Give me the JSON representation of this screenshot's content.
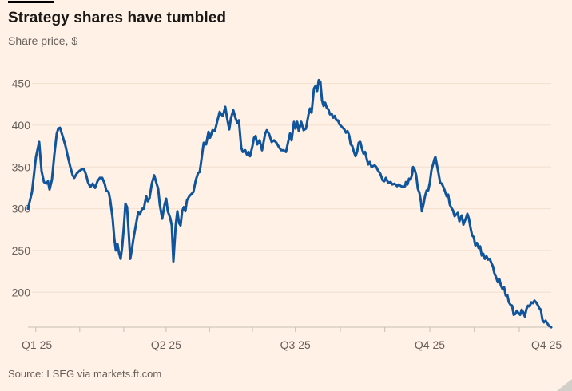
{
  "header": {
    "title": "Strategy shares have tumbled",
    "subtitle": "Share price, $"
  },
  "footer": {
    "source": "Source: LSEG via markets.ft.com"
  },
  "colors": {
    "background": "#FFF1E5",
    "line": "#10549C",
    "title_text": "#1A1817",
    "muted_text": "#66605C",
    "gridline": "#F2E0D0",
    "axis": "#C7BEB4",
    "accent_bar": "#000000",
    "resize_handle": "#D2CFCA"
  },
  "icons": {
    "resize_handle": "corner-triangle"
  },
  "chart_data": {
    "type": "line",
    "title": "Strategy shares have tumbled",
    "ylabel": "Share price, $",
    "source": "Source: LSEG via markets.ft.com",
    "grid": "horizontal",
    "legend": "none",
    "ylim": [
      157,
      469
    ],
    "y_ticks": [
      200,
      250,
      300,
      350,
      400,
      450
    ],
    "x_ticks": [
      {
        "label": "Q1 25",
        "pos": 0.017
      },
      {
        "label": "Q2 25",
        "pos": 0.264
      },
      {
        "label": "Q3 25",
        "pos": 0.511
      },
      {
        "label": "Q4 25",
        "pos": 0.768
      },
      {
        "label": "Q4 25",
        "pos": 0.991
      }
    ],
    "x_minor_tick_pos": [
      0.015,
      0.099,
      0.183,
      0.264,
      0.347,
      0.429,
      0.511,
      0.597,
      0.682,
      0.768,
      0.853,
      0.939
    ],
    "series": [
      {
        "name": "Strategy share price ($)",
        "points": [
          [
            0.0,
            300
          ],
          [
            0.0076,
            320
          ],
          [
            0.0153,
            362
          ],
          [
            0.0214,
            380
          ],
          [
            0.026,
            345
          ],
          [
            0.0305,
            332
          ],
          [
            0.0351,
            330
          ],
          [
            0.0382,
            333
          ],
          [
            0.0412,
            323
          ],
          [
            0.0458,
            335
          ],
          [
            0.0504,
            365
          ],
          [
            0.055,
            390
          ],
          [
            0.058,
            396
          ],
          [
            0.0611,
            397
          ],
          [
            0.0656,
            388
          ],
          [
            0.0718,
            375
          ],
          [
            0.0763,
            362
          ],
          [
            0.0809,
            350
          ],
          [
            0.0855,
            340
          ],
          [
            0.0885,
            337
          ],
          [
            0.0931,
            342
          ],
          [
            0.0977,
            345
          ],
          [
            0.1023,
            347
          ],
          [
            0.1069,
            348
          ],
          [
            0.1115,
            340
          ],
          [
            0.1145,
            332
          ],
          [
            0.1191,
            326
          ],
          [
            0.1237,
            330
          ],
          [
            0.1282,
            325
          ],
          [
            0.1328,
            333
          ],
          [
            0.1374,
            337
          ],
          [
            0.142,
            337
          ],
          [
            0.1466,
            330
          ],
          [
            0.1496,
            322
          ],
          [
            0.1542,
            320
          ],
          [
            0.1573,
            310
          ],
          [
            0.1618,
            288
          ],
          [
            0.1649,
            265
          ],
          [
            0.168,
            250
          ],
          [
            0.171,
            258
          ],
          [
            0.1741,
            247
          ],
          [
            0.1771,
            240
          ],
          [
            0.1802,
            255
          ],
          [
            0.1832,
            278
          ],
          [
            0.1863,
            306
          ],
          [
            0.1893,
            302
          ],
          [
            0.1924,
            273
          ],
          [
            0.1954,
            240
          ],
          [
            0.1985,
            251
          ],
          [
            0.2015,
            264
          ],
          [
            0.2061,
            280
          ],
          [
            0.2107,
            296
          ],
          [
            0.2137,
            293
          ],
          [
            0.2183,
            300
          ],
          [
            0.2214,
            300
          ],
          [
            0.226,
            315
          ],
          [
            0.229,
            309
          ],
          [
            0.2321,
            312
          ],
          [
            0.2366,
            330
          ],
          [
            0.2412,
            340
          ],
          [
            0.2458,
            330
          ],
          [
            0.2489,
            324
          ],
          [
            0.2519,
            305
          ],
          [
            0.2565,
            288
          ],
          [
            0.2611,
            305
          ],
          [
            0.2641,
            312
          ],
          [
            0.2672,
            297
          ],
          [
            0.2718,
            289
          ],
          [
            0.2748,
            280
          ],
          [
            0.2779,
            237
          ],
          [
            0.2824,
            281
          ],
          [
            0.2855,
            297
          ],
          [
            0.2885,
            283
          ],
          [
            0.2916,
            280
          ],
          [
            0.2947,
            297
          ],
          [
            0.2977,
            302
          ],
          [
            0.3008,
            297
          ],
          [
            0.3038,
            310
          ],
          [
            0.3084,
            315
          ],
          [
            0.3115,
            317
          ],
          [
            0.316,
            320
          ],
          [
            0.3206,
            334
          ],
          [
            0.3252,
            343
          ],
          [
            0.3282,
            344
          ],
          [
            0.3328,
            365
          ],
          [
            0.3359,
            379
          ],
          [
            0.3405,
            377
          ],
          [
            0.345,
            392
          ],
          [
            0.3481,
            385
          ],
          [
            0.3527,
            394
          ],
          [
            0.3573,
            393
          ],
          [
            0.3618,
            405
          ],
          [
            0.3664,
            416
          ],
          [
            0.3695,
            413
          ],
          [
            0.3725,
            411
          ],
          [
            0.3771,
            422
          ],
          [
            0.3802,
            410
          ],
          [
            0.3847,
            395
          ],
          [
            0.3878,
            408
          ],
          [
            0.3924,
            418
          ],
          [
            0.3969,
            408
          ],
          [
            0.4,
            403
          ],
          [
            0.4031,
            406
          ],
          [
            0.4076,
            373
          ],
          [
            0.4107,
            368
          ],
          [
            0.4153,
            370
          ],
          [
            0.4183,
            365
          ],
          [
            0.4214,
            368
          ],
          [
            0.4244,
            363
          ],
          [
            0.429,
            375
          ],
          [
            0.4321,
            385
          ],
          [
            0.4351,
            387
          ],
          [
            0.4382,
            377
          ],
          [
            0.4427,
            382
          ],
          [
            0.4473,
            370
          ],
          [
            0.4504,
            380
          ],
          [
            0.4534,
            390
          ],
          [
            0.4565,
            394
          ],
          [
            0.4611,
            389
          ],
          [
            0.4656,
            380
          ],
          [
            0.4702,
            382
          ],
          [
            0.4748,
            379
          ],
          [
            0.4794,
            374
          ],
          [
            0.484,
            370
          ],
          [
            0.4885,
            370
          ],
          [
            0.4931,
            368
          ],
          [
            0.4962,
            377
          ],
          [
            0.5008,
            390
          ],
          [
            0.5038,
            382
          ],
          [
            0.5084,
            404
          ],
          [
            0.5115,
            396
          ],
          [
            0.5145,
            404
          ],
          [
            0.5176,
            393
          ],
          [
            0.5221,
            404
          ],
          [
            0.5267,
            394
          ],
          [
            0.5313,
            396
          ],
          [
            0.5359,
            412
          ],
          [
            0.5389,
            420
          ],
          [
            0.542,
            415
          ],
          [
            0.5466,
            444
          ],
          [
            0.5496,
            447
          ],
          [
            0.5527,
            441
          ],
          [
            0.5557,
            454
          ],
          [
            0.5588,
            452
          ],
          [
            0.5618,
            430
          ],
          [
            0.5649,
            423
          ],
          [
            0.5679,
            427
          ],
          [
            0.571,
            421
          ],
          [
            0.574,
            419
          ],
          [
            0.5771,
            413
          ],
          [
            0.5802,
            414
          ],
          [
            0.5832,
            409
          ],
          [
            0.5863,
            411
          ],
          [
            0.5893,
            406
          ],
          [
            0.5924,
            406
          ],
          [
            0.5954,
            401
          ],
          [
            0.5985,
            399
          ],
          [
            0.6015,
            397
          ],
          [
            0.6046,
            395
          ],
          [
            0.6076,
            391
          ],
          [
            0.6107,
            393
          ],
          [
            0.6137,
            388
          ],
          [
            0.6168,
            377
          ],
          [
            0.6198,
            375
          ],
          [
            0.6229,
            368
          ],
          [
            0.626,
            363
          ],
          [
            0.629,
            368
          ],
          [
            0.6321,
            379
          ],
          [
            0.6351,
            380
          ],
          [
            0.6382,
            372
          ],
          [
            0.6412,
            366
          ],
          [
            0.6443,
            368
          ],
          [
            0.6473,
            360
          ],
          [
            0.6504,
            353
          ],
          [
            0.6534,
            356
          ],
          [
            0.6565,
            350
          ],
          [
            0.6595,
            351
          ],
          [
            0.6626,
            352
          ],
          [
            0.6656,
            350
          ],
          [
            0.6687,
            346
          ],
          [
            0.6733,
            342
          ],
          [
            0.6779,
            334
          ],
          [
            0.6809,
            333
          ],
          [
            0.684,
            337
          ],
          [
            0.6885,
            331
          ],
          [
            0.6931,
            332
          ],
          [
            0.6962,
            329
          ],
          [
            0.7008,
            330
          ],
          [
            0.7053,
            327
          ],
          [
            0.7084,
            329
          ],
          [
            0.713,
            327
          ],
          [
            0.7176,
            326
          ],
          [
            0.7206,
            327
          ],
          [
            0.7221,
            332
          ],
          [
            0.7252,
            329
          ],
          [
            0.7282,
            336
          ],
          [
            0.7313,
            335
          ],
          [
            0.7344,
            342
          ],
          [
            0.7359,
            350
          ],
          [
            0.739,
            347
          ],
          [
            0.742,
            340
          ],
          [
            0.7451,
            324
          ],
          [
            0.7481,
            319
          ],
          [
            0.7512,
            308
          ],
          [
            0.7527,
            297
          ],
          [
            0.7557,
            305
          ],
          [
            0.7588,
            315
          ],
          [
            0.7618,
            322
          ],
          [
            0.7649,
            322
          ],
          [
            0.768,
            331
          ],
          [
            0.771,
            346
          ],
          [
            0.774,
            353
          ],
          [
            0.7771,
            360
          ],
          [
            0.7786,
            362
          ],
          [
            0.7817,
            352
          ],
          [
            0.7847,
            342
          ],
          [
            0.7878,
            331
          ],
          [
            0.7908,
            330
          ],
          [
            0.7939,
            326
          ],
          [
            0.7969,
            321
          ],
          [
            0.8,
            315
          ],
          [
            0.8031,
            317
          ],
          [
            0.8061,
            305
          ],
          [
            0.8092,
            301
          ],
          [
            0.8122,
            298
          ],
          [
            0.8153,
            291
          ],
          [
            0.8183,
            293
          ],
          [
            0.8214,
            295
          ],
          [
            0.8244,
            285
          ],
          [
            0.829,
            292
          ],
          [
            0.8321,
            281
          ],
          [
            0.8366,
            288
          ],
          [
            0.8397,
            294
          ],
          [
            0.8427,
            288
          ],
          [
            0.8458,
            277
          ],
          [
            0.8489,
            268
          ],
          [
            0.8519,
            266
          ],
          [
            0.855,
            256
          ],
          [
            0.858,
            259
          ],
          [
            0.8611,
            253
          ],
          [
            0.8641,
            255
          ],
          [
            0.8672,
            244
          ],
          [
            0.8702,
            246
          ],
          [
            0.8733,
            240
          ],
          [
            0.8763,
            243
          ],
          [
            0.8794,
            239
          ],
          [
            0.8824,
            240
          ],
          [
            0.8855,
            235
          ],
          [
            0.8885,
            231
          ],
          [
            0.8916,
            222
          ],
          [
            0.8947,
            218
          ],
          [
            0.8977,
            212
          ],
          [
            0.9008,
            216
          ],
          [
            0.9038,
            208
          ],
          [
            0.9069,
            204
          ],
          [
            0.9099,
            206
          ],
          [
            0.913,
            196
          ],
          [
            0.916,
            197
          ],
          [
            0.9191,
            188
          ],
          [
            0.9221,
            185
          ],
          [
            0.9252,
            184
          ],
          [
            0.9282,
            173
          ],
          [
            0.9313,
            174
          ],
          [
            0.9344,
            178
          ],
          [
            0.9374,
            175
          ],
          [
            0.9405,
            173
          ],
          [
            0.9435,
            179
          ],
          [
            0.9466,
            176
          ],
          [
            0.9496,
            171
          ],
          [
            0.9527,
            180
          ],
          [
            0.9557,
            184
          ],
          [
            0.9588,
            183
          ],
          [
            0.9618,
            188
          ],
          [
            0.9649,
            187
          ],
          [
            0.9679,
            190
          ],
          [
            0.971,
            188
          ],
          [
            0.974,
            185
          ],
          [
            0.9771,
            181
          ],
          [
            0.9802,
            179
          ],
          [
            0.9832,
            167
          ],
          [
            0.9863,
            164
          ],
          [
            0.9893,
            166
          ],
          [
            0.9924,
            163
          ],
          [
            0.9954,
            160
          ],
          [
            1.0,
            158
          ]
        ]
      }
    ]
  }
}
